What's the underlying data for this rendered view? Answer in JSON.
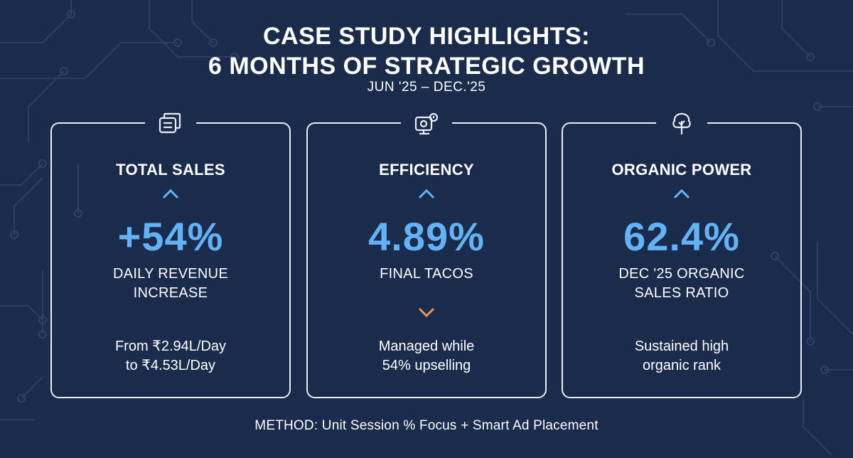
{
  "header": {
    "title_line1": "CASE STUDY HIGHLIGHTS:",
    "title_line2": "6 MONTHS OF STRATEGIC GROWTH",
    "date_range": "JUN '25 – DEC.'25"
  },
  "colors": {
    "background": "#1b2b4b",
    "accent_blue": "#62b2f5",
    "accent_orange": "#e39a5b",
    "card_border": "#e9edf4"
  },
  "cards": [
    {
      "icon": "documents-icon",
      "title": "TOTAL SALES",
      "trend": "up",
      "metric": "+54%",
      "label_line1": "DAILY REVENUE",
      "label_line2": "INCREASE",
      "note_line1": "From ₹2.94L/Day",
      "note_line2": "to ₹4.53L/Day"
    },
    {
      "icon": "monitor-gear-icon",
      "title": "EFFICIENCY",
      "trend": "up",
      "metric": "4.89%",
      "label_line1": "FINAL TACOS",
      "label_line2": "",
      "secondary_trend": "down",
      "note_line1": "Managed while",
      "note_line2": "54% upselling"
    },
    {
      "icon": "tree-icon",
      "title": "ORGANIC POWER",
      "trend": "up",
      "metric": "62.4%",
      "label_line1": "DEC '25 ORGANIC",
      "label_line2": "SALES RATIO",
      "note_line1": "Sustained high",
      "note_line2": "organic rank"
    }
  ],
  "footer": {
    "method": "METHOD: Unit Session % Focus + Smart Ad Placement"
  }
}
